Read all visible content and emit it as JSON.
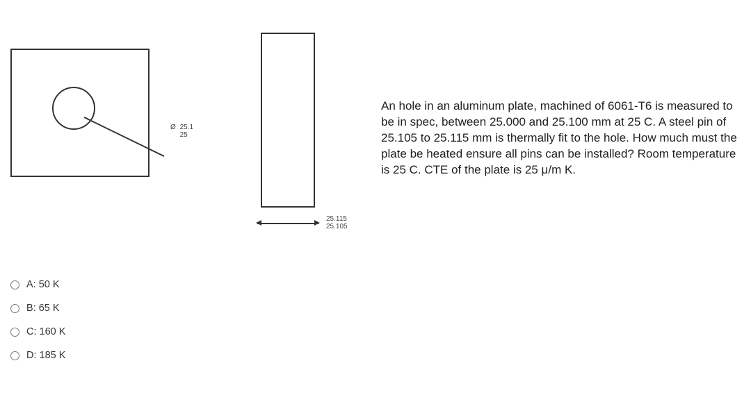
{
  "diagrams": {
    "plate": {
      "diameter_symbol": "Ø",
      "diameter_upper": "25.1",
      "diameter_lower": "25",
      "rect_color": "#333333",
      "hole_color": "#333333"
    },
    "pin": {
      "width_upper": "25.115",
      "width_lower": "25.105",
      "rect_color": "#333333"
    }
  },
  "question": {
    "text": "An hole in an aluminum plate, machined of 6061-T6 is measured to be in spec, between 25.000 and 25.100 mm at 25 C. A steel pin of 25.105 to 25.115 mm is thermally fit to the hole. How much must the plate be heated ensure all pins can be installed? Room temperature is 25 C. CTE of the plate is 25 μ/m K."
  },
  "options": [
    {
      "letter": "A",
      "value": "50 K"
    },
    {
      "letter": "B",
      "value": "65 K"
    },
    {
      "letter": "C",
      "value": "160 K"
    },
    {
      "letter": "D",
      "value": "185 K"
    }
  ],
  "colors": {
    "text": "#333333",
    "background": "#ffffff",
    "dim_label": "#444444"
  },
  "typography": {
    "body_font": "Arial",
    "question_fontsize": 17,
    "option_fontsize": 14.5,
    "dim_fontsize": 10
  }
}
